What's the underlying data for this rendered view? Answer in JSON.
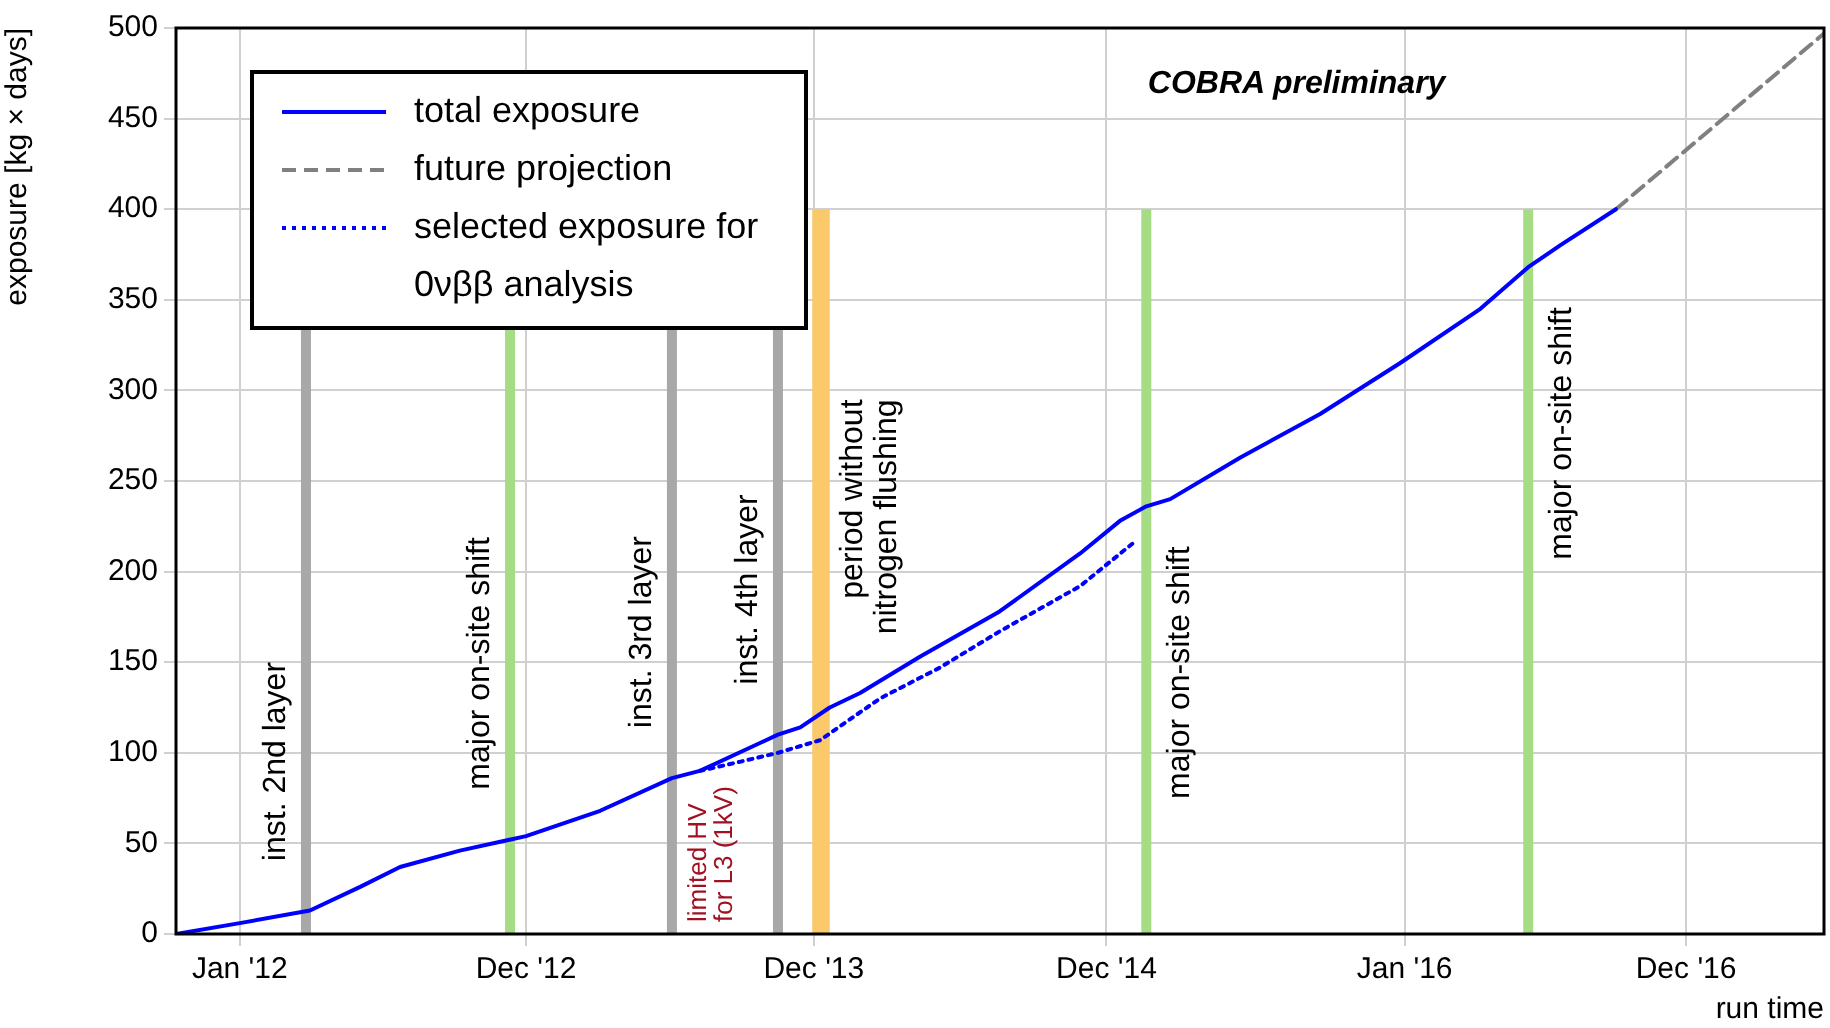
{
  "chart_data": {
    "type": "line",
    "xlabel": "run time",
    "ylabel": "exposure [kg × days]",
    "xlim": [
      "2011-10-13",
      "2017-06-10"
    ],
    "xticks": [
      {
        "value": "2012-01-01",
        "label": "Jan '12"
      },
      {
        "value": "2012-12-25",
        "label": "Dec '12"
      },
      {
        "value": "2013-12-21",
        "label": "Dec '13"
      },
      {
        "value": "2014-12-23",
        "label": "Dec '14"
      },
      {
        "value": "2016-01-01",
        "label": "Jan '16"
      },
      {
        "value": "2016-12-19",
        "label": "Dec '16"
      }
    ],
    "ylim": [
      0,
      500
    ],
    "yticks": [
      0,
      50,
      100,
      150,
      200,
      250,
      300,
      350,
      400,
      450,
      500
    ],
    "grid": true,
    "legend": "top left",
    "marker": "none",
    "series": [
      {
        "name": "total exposure",
        "color": "#0000ff",
        "line_style": "solid",
        "x": [
          "2011-10-13",
          "2012-01-01",
          "2012-03-29",
          "2012-05-31",
          "2012-07-20",
          "2012-10-03",
          "2012-12-25",
          "2013-03-28",
          "2013-06-26",
          "2013-07-31",
          "2013-11-06",
          "2013-12-04",
          "2014-01-10",
          "2014-02-17",
          "2014-05-03",
          "2014-08-11",
          "2014-11-20",
          "2015-01-09",
          "2015-02-11",
          "2015-03-13",
          "2015-06-09",
          "2015-09-17",
          "2015-12-26",
          "2016-04-05",
          "2016-06-04",
          "2016-07-14",
          "2016-09-22"
        ],
        "values": [
          0,
          6,
          13,
          26,
          37,
          46,
          54,
          68,
          86,
          90,
          110,
          114,
          125,
          133,
          153,
          178,
          210,
          228,
          236,
          240,
          263,
          287,
          315,
          345,
          368,
          380,
          400
        ]
      },
      {
        "name": "future projection",
        "color": "#808080",
        "line_style": "dashed",
        "x": [
          "2016-09-22",
          "2017-06-10"
        ],
        "values": [
          400,
          497
        ]
      },
      {
        "name": "selected exposure for 0νββ analysis",
        "color": "#0000ff",
        "line_style": "dotted",
        "x": [
          "2013-07-31",
          "2013-09-19",
          "2013-11-06",
          "2013-12-29",
          "2014-03-14",
          "2014-05-28",
          "2014-08-11",
          "2014-11-20",
          "2015-01-29"
        ],
        "values": [
          90,
          95,
          100,
          107,
          130,
          147,
          167,
          192,
          217
        ]
      }
    ],
    "ref_lines": [
      {
        "axis": "x",
        "value": "2012-03-24",
        "label": "inst. 2nd layer",
        "color": "#a8a8a8"
      },
      {
        "axis": "x",
        "value": "2012-12-05",
        "label": "major on-site shift",
        "color": "#a6dc84"
      },
      {
        "axis": "x",
        "value": "2013-06-26",
        "label": "inst. 3rd layer",
        "color": "#a8a8a8"
      },
      {
        "axis": "x",
        "value": "2013-11-06",
        "label": "inst. 4th layer",
        "color": "#a8a8a8"
      },
      {
        "axis": "x",
        "value": "2015-02-11",
        "label": "major on-site shift",
        "color": "#a6dc84"
      },
      {
        "axis": "x",
        "value": "2016-06-04",
        "label": "major on-site shift",
        "color": "#a6dc84"
      }
    ],
    "bands": [
      {
        "axis": "x",
        "from": "2013-12-19",
        "to": "2014-01-10",
        "label": "period without nitrogen flushing",
        "color": "#fbc96a"
      }
    ],
    "annotations": [
      "COBRA preliminary",
      "limited HV for L3 (1kV)"
    ]
  }
}
